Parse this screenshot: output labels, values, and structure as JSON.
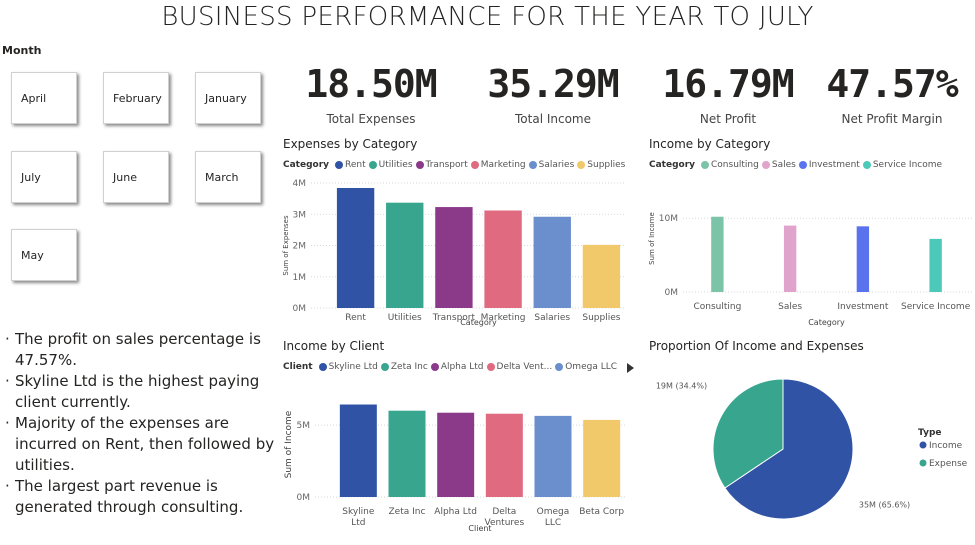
{
  "title": "BUSINESS PERFORMANCE FOR THE YEAR TO JULY",
  "slicer": {
    "title": "Month",
    "items": [
      "April",
      "February",
      "January",
      "July",
      "June",
      "March",
      "May"
    ]
  },
  "kpis": [
    {
      "value": "18.50M",
      "label": "Total Expenses"
    },
    {
      "value": "35.29M",
      "label": "Total Income"
    },
    {
      "value": "16.79M",
      "label": "Net Profit"
    },
    {
      "value": "47.57%",
      "label": "Net Profit Margin"
    }
  ],
  "notes": [
    "The profit on sales percentage is 47.57%.",
    "Skyline Ltd is the highest paying client currently.",
    "Majority of the expenses are incurred on Rent, then followed by utilities.",
    "The largest part revenue is generated through consulting."
  ],
  "chart_data": [
    {
      "type": "bar",
      "title": "Expenses by Category",
      "legend": {
        "title": "Category",
        "items": [
          "Rent",
          "Utilities",
          "Transport",
          "Marketing",
          "Salaries",
          "Supplies"
        ]
      },
      "categories": [
        "Rent",
        "Utilities",
        "Transport",
        "Marketing",
        "Salaries",
        "Supplies"
      ],
      "colors": [
        "#3153a5",
        "#38a68e",
        "#8b3a8a",
        "#e06a7f",
        "#6a8fcc",
        "#f2c96a"
      ],
      "values": [
        3840000,
        3370000,
        3230000,
        3120000,
        2920000,
        2020000
      ],
      "ylim": [
        0,
        4000000
      ],
      "yticks": [
        {
          "value": 0,
          "label": "0M"
        },
        {
          "value": 1000000,
          "label": "1M"
        },
        {
          "value": 2000000,
          "label": "2M"
        },
        {
          "value": 3000000,
          "label": "3M"
        },
        {
          "value": 4000000,
          "label": "4M"
        }
      ],
      "xlabel": "Category",
      "ylabel": "Sum of Expenses",
      "grid": true
    },
    {
      "type": "bar",
      "title": "Income by Category",
      "legend": {
        "title": "Category",
        "items": [
          "Consulting",
          "Sales",
          "Investment",
          "Service Income"
        ]
      },
      "categories": [
        "Consulting",
        "Sales",
        "Investment",
        "Service Income"
      ],
      "colors": [
        "#7cc4a8",
        "#e0a3cb",
        "#5b72ee",
        "#4cc9b8"
      ],
      "values": [
        10200000,
        9000000,
        8900000,
        7200000
      ],
      "ylim": [
        0,
        14500000
      ],
      "yticks": [
        {
          "value": 0,
          "label": "0M"
        },
        {
          "value": 10000000,
          "label": "10M"
        }
      ],
      "xlabel": "Category",
      "ylabel": "Sum of Income",
      "grid": true
    },
    {
      "type": "bar",
      "title": "Income by Client",
      "legend": {
        "title": "Client",
        "items": [
          "Skyline Ltd",
          "Zeta Inc",
          "Alpha Ltd",
          "Delta Vent...",
          "Omega LLC"
        ]
      },
      "categories": [
        "Skyline Ltd",
        "Zeta Inc",
        "Alpha Ltd",
        "Delta Ventures",
        "Omega LLC",
        "Beta Corp"
      ],
      "colors": [
        "#3153a5",
        "#38a68e",
        "#8b3a8a",
        "#e06a7f",
        "#6a8fcc",
        "#f2c96a"
      ],
      "values": [
        6430000,
        6000000,
        5860000,
        5790000,
        5640000,
        5360000
      ],
      "ylim": [
        0,
        7300000
      ],
      "yticks": [
        {
          "value": 0,
          "label": "0M"
        },
        {
          "value": 5000000,
          "label": "5M"
        }
      ],
      "xlabel": "Client",
      "ylabel": "Sum of Income",
      "grid": true
    },
    {
      "type": "pie",
      "title": "Proportion Of Income and Expenses",
      "legend": {
        "title": "Type"
      },
      "categories": [
        "Income",
        "Expense"
      ],
      "colors": [
        "#3153a5",
        "#38a68e"
      ],
      "values": [
        65.6,
        34.4
      ],
      "value_labels": [
        "35M (65.6%)",
        "19M (34.4%)"
      ]
    }
  ]
}
